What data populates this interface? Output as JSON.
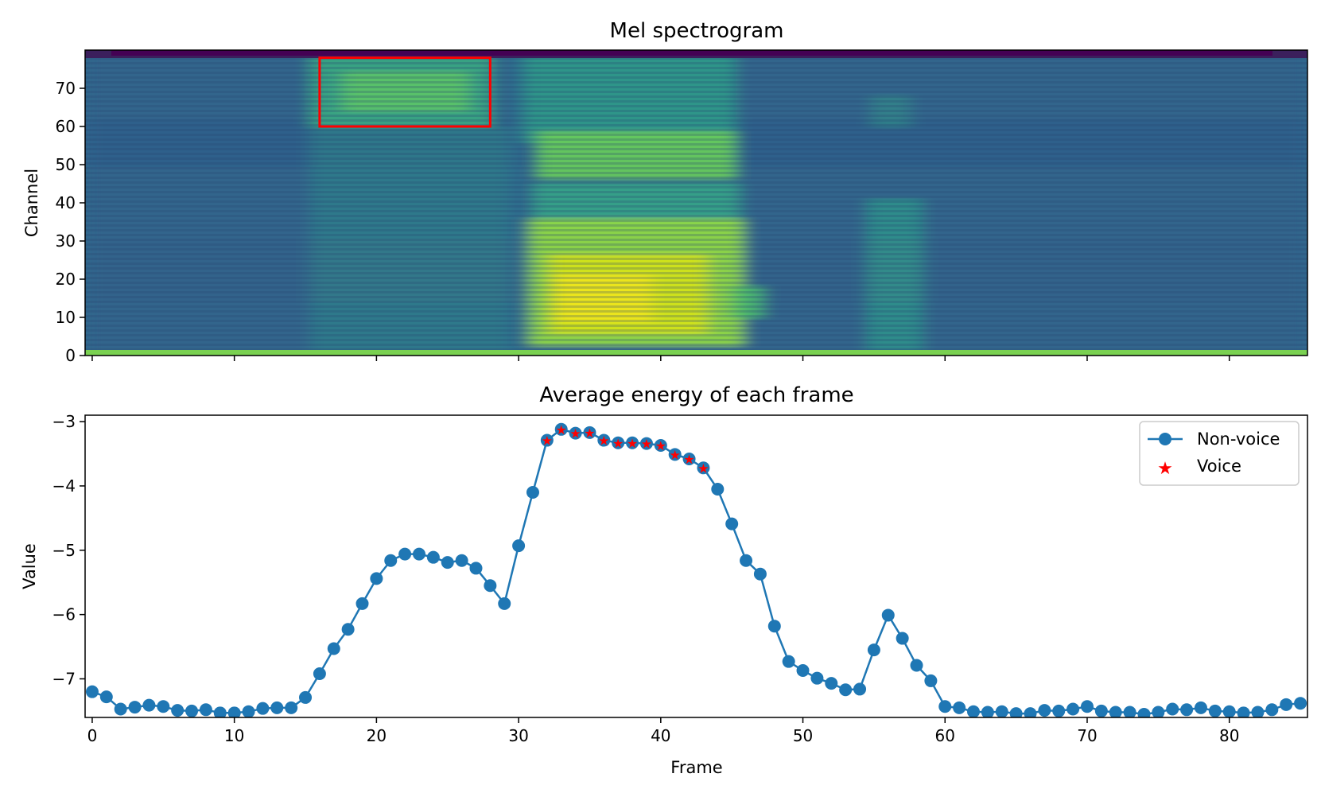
{
  "chart_data": [
    {
      "type": "heatmap",
      "title": "Mel spectrogram",
      "ylabel": "Channel",
      "xlabel": "",
      "xlim": [
        -0.5,
        85.5
      ],
      "ylim": [
        0,
        80
      ],
      "xticks": [
        0,
        10,
        20,
        30,
        40,
        50,
        60,
        70,
        80
      ],
      "yticks": [
        0,
        10,
        20,
        30,
        40,
        50,
        60,
        70
      ],
      "ytick_labels": [
        "0",
        "10",
        "20",
        "30",
        "40",
        "50",
        "60",
        "70"
      ],
      "colormap": "viridis",
      "highlight_box": {
        "x_range": [
          16,
          28
        ],
        "y_range": [
          60,
          78
        ],
        "color": "#ff0000"
      }
    },
    {
      "type": "line",
      "title": "Average energy of each frame",
      "xlabel": "Frame",
      "ylabel": "Value",
      "xlim": [
        -0.5,
        85.5
      ],
      "ylim": [
        -7.6,
        -2.9
      ],
      "xticks": [
        0,
        10,
        20,
        30,
        40,
        50,
        60,
        70,
        80
      ],
      "xtick_labels": [
        "0",
        "10",
        "20",
        "30",
        "40",
        "50",
        "60",
        "70",
        "80"
      ],
      "yticks": [
        -3,
        -4,
        -5,
        -6,
        -7
      ],
      "ytick_labels": [
        "−3",
        "−4",
        "−5",
        "−6",
        "−7"
      ],
      "legend_position": "top-right",
      "series": [
        {
          "name": "Non-voice",
          "color": "#1f77b4",
          "marker": "circle",
          "x": [
            0,
            1,
            2,
            3,
            4,
            5,
            6,
            7,
            8,
            9,
            10,
            11,
            12,
            13,
            14,
            15,
            16,
            17,
            18,
            19,
            20,
            21,
            22,
            23,
            24,
            25,
            26,
            27,
            28,
            29,
            30,
            31,
            32,
            33,
            34,
            35,
            36,
            37,
            38,
            39,
            40,
            41,
            42,
            43,
            44,
            45,
            46,
            47,
            48,
            49,
            50,
            51,
            52,
            53,
            54,
            55,
            56,
            57,
            58,
            59,
            60,
            61,
            62,
            63,
            64,
            65,
            66,
            67,
            68,
            69,
            70,
            71,
            72,
            73,
            74,
            75,
            76,
            77,
            78,
            79,
            80,
            81,
            82,
            83,
            84,
            85
          ],
          "values": [
            -7.2,
            -7.28,
            -7.47,
            -7.44,
            -7.41,
            -7.43,
            -7.49,
            -7.5,
            -7.48,
            -7.53,
            -7.53,
            -7.51,
            -7.46,
            -7.45,
            -7.45,
            -7.29,
            -6.92,
            -6.53,
            -6.23,
            -5.83,
            -5.44,
            -5.16,
            -5.06,
            -5.06,
            -5.11,
            -5.19,
            -5.16,
            -5.28,
            -5.55,
            -5.83,
            -4.93,
            -4.1,
            -3.29,
            -3.12,
            -3.18,
            -3.17,
            -3.29,
            -3.33,
            -3.33,
            -3.34,
            -3.37,
            -3.51,
            -3.58,
            -3.72,
            -4.05,
            -4.59,
            -5.16,
            -5.37,
            -6.18,
            -6.73,
            -6.87,
            -6.99,
            -7.07,
            -7.17,
            -7.16,
            -6.55,
            -6.01,
            -6.37,
            -6.79,
            -7.03,
            -7.43,
            -7.45,
            -7.51,
            -7.52,
            -7.51,
            -7.54,
            -7.54,
            -7.49,
            -7.5,
            -7.47,
            -7.43,
            -7.5,
            -7.52,
            -7.52,
            -7.55,
            -7.52,
            -7.47,
            -7.48,
            -7.45,
            -7.5,
            -7.51,
            -7.53,
            -7.52,
            -7.48,
            -7.4,
            -7.38
          ]
        },
        {
          "name": "Voice",
          "color": "#ff0000",
          "marker": "star",
          "x": [
            32,
            33,
            34,
            35,
            36,
            37,
            38,
            39,
            40,
            41,
            42,
            43
          ],
          "values": [
            -3.29,
            -3.12,
            -3.18,
            -3.17,
            -3.29,
            -3.33,
            -3.33,
            -3.34,
            -3.37,
            -3.51,
            -3.58,
            -3.72
          ]
        }
      ]
    }
  ]
}
